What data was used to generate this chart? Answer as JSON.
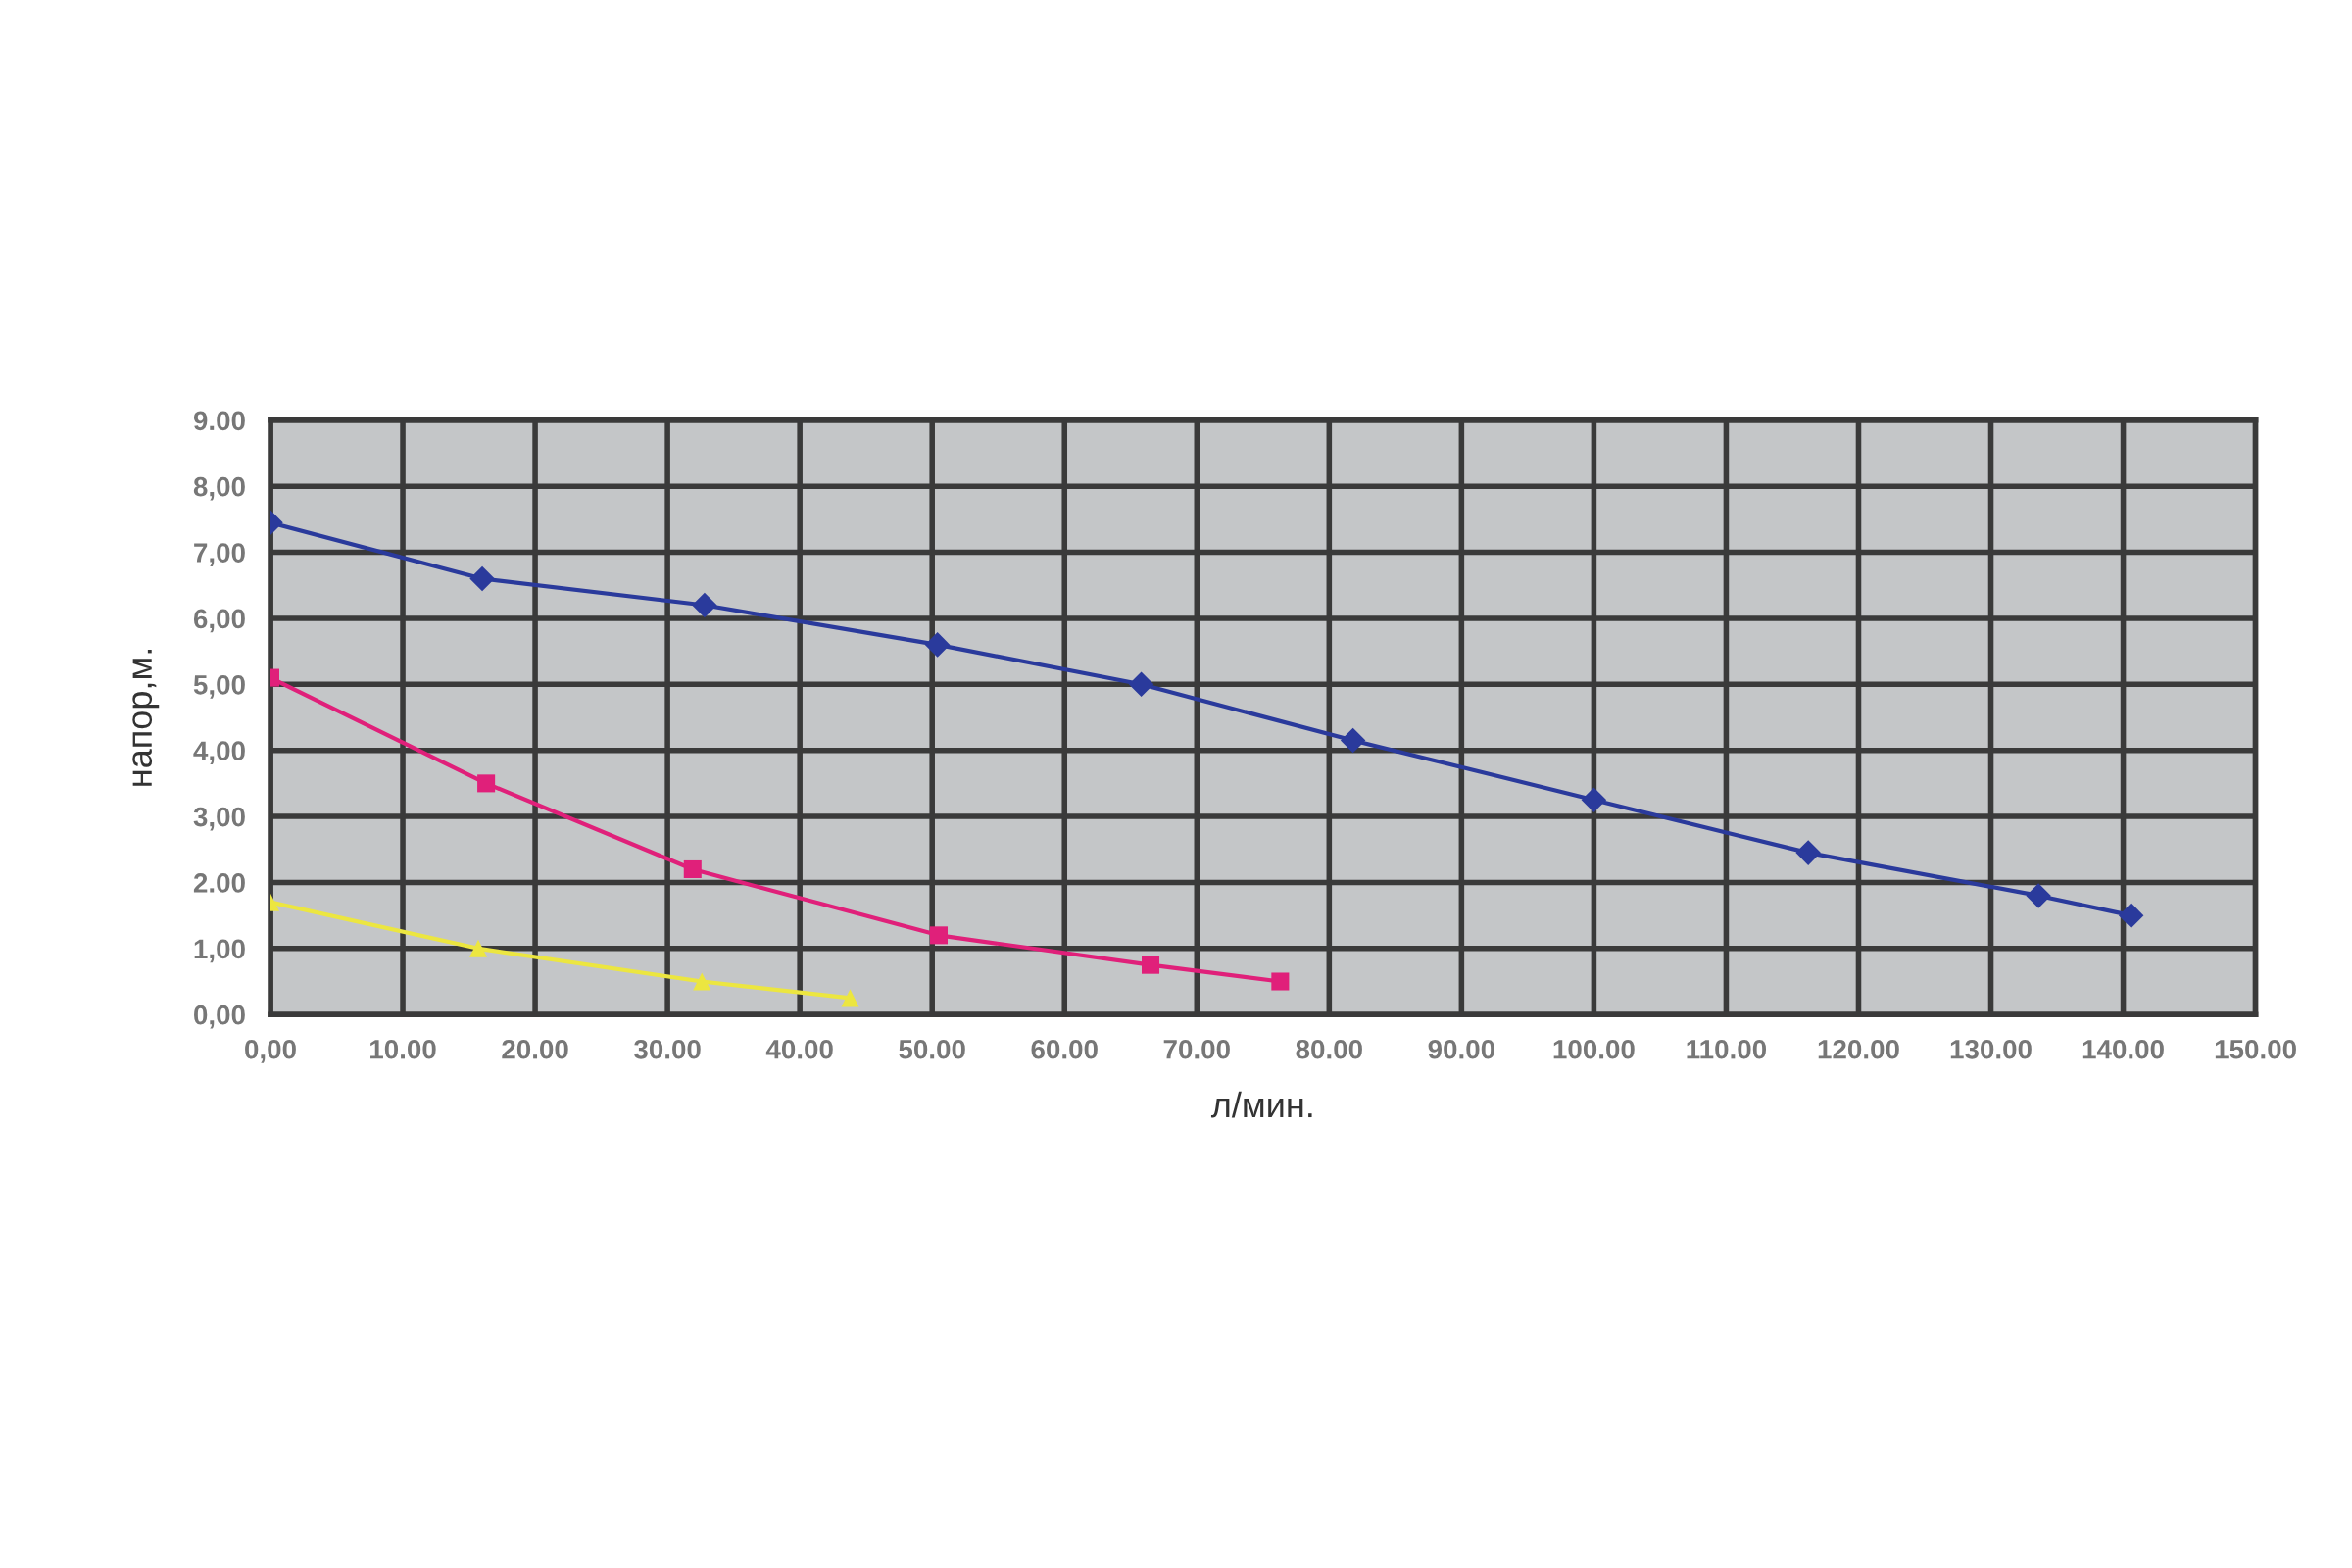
{
  "chart_data": {
    "type": "line",
    "xlabel": "л/мин.",
    "ylabel": "напор,м.",
    "xlim": [
      0,
      150
    ],
    "ylim": [
      0,
      9
    ],
    "xticks": [
      {
        "value": 0,
        "label": "0,00"
      },
      {
        "value": 10,
        "label": "10.00"
      },
      {
        "value": 20,
        "label": "20.00"
      },
      {
        "value": 30,
        "label": "30.00"
      },
      {
        "value": 40,
        "label": "40.00"
      },
      {
        "value": 50,
        "label": "50.00"
      },
      {
        "value": 60,
        "label": "60.00"
      },
      {
        "value": 70,
        "label": "70.00"
      },
      {
        "value": 80,
        "label": "80.00"
      },
      {
        "value": 90,
        "label": "90.00"
      },
      {
        "value": 100,
        "label": "100.00"
      },
      {
        "value": 110,
        "label": "110.00"
      },
      {
        "value": 120,
        "label": "120.00"
      },
      {
        "value": 130,
        "label": "130.00"
      },
      {
        "value": 140,
        "label": "140.00"
      },
      {
        "value": 150,
        "label": "150.00"
      }
    ],
    "yticks": [
      {
        "value": 0,
        "label": "0,00"
      },
      {
        "value": 1,
        "label": "1,00"
      },
      {
        "value": 2,
        "label": "2.00"
      },
      {
        "value": 3,
        "label": "3,00"
      },
      {
        "value": 4,
        "label": "4,00"
      },
      {
        "value": 5,
        "label": "5,00"
      },
      {
        "value": 6,
        "label": "6,00"
      },
      {
        "value": 7,
        "label": "7,00"
      },
      {
        "value": 8,
        "label": "8,00"
      },
      {
        "value": 9,
        "label": "9.00"
      }
    ],
    "grid": true,
    "series": [
      {
        "color": "#2a3a9c",
        "marker": "diamond",
        "x": [
          0,
          16,
          32.8,
          50.4,
          65.8,
          81.8,
          100,
          116.2,
          133.6,
          140.6
        ],
        "values": [
          7.45,
          6.6,
          6.2,
          5.6,
          5.0,
          4.15,
          3.25,
          2.45,
          1.8,
          1.5
        ]
      },
      {
        "color": "#e0207a",
        "marker": "square",
        "x": [
          0,
          16.3,
          31.9,
          50.5,
          66.5,
          76.3
        ],
        "values": [
          5.1,
          3.5,
          2.2,
          1.2,
          0.75,
          0.5
        ]
      },
      {
        "color": "#ece640",
        "marker": "triangle",
        "x": [
          0,
          15.7,
          32.6,
          43.8
        ],
        "values": [
          1.7,
          1.0,
          0.5,
          0.25
        ]
      }
    ]
  }
}
